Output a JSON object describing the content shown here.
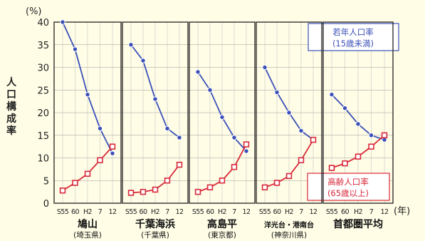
{
  "chart_data": {
    "type": "line",
    "y_unit": "(%)",
    "ylabel": "人口構成率",
    "x_unit": "(年)",
    "ylim": [
      0,
      40
    ],
    "yticks": [
      0,
      5,
      10,
      15,
      20,
      25,
      30,
      35,
      40
    ],
    "grid": true,
    "legend": [
      {
        "line1": "若年人口率",
        "line2": "(15歳未満)",
        "color": "#3b50b8",
        "marker": "circle",
        "placement": "top-right"
      },
      {
        "line1": "高齢人口率",
        "line2": "(65歳以上)",
        "color": "#d8283a",
        "marker": "square",
        "placement": "bottom-right"
      }
    ],
    "panels": [
      {
        "name": "鳩山",
        "prefecture": "(埼玉県)",
        "categories": [
          "S55",
          "60",
          "H2",
          "7",
          "12"
        ],
        "series": [
          {
            "key": "young",
            "values": [
              40,
              34,
              24,
              16.5,
              11
            ]
          },
          {
            "key": "elderly",
            "values": [
              2.8,
              4.5,
              6.5,
              9.5,
              12.5
            ]
          }
        ]
      },
      {
        "name": "千葉海浜",
        "prefecture": "(千葉県)",
        "categories": [
          "S55",
          "60",
          "H2",
          "7",
          "12"
        ],
        "series": [
          {
            "key": "young",
            "values": [
              35,
              31.5,
              23,
              16.5,
              14.5
            ]
          },
          {
            "key": "elderly",
            "values": [
              2.3,
              2.5,
              3,
              5,
              8.5
            ]
          }
        ]
      },
      {
        "name": "高島平",
        "prefecture": "(東京都)",
        "categories": [
          "S55",
          "60",
          "H2",
          "7",
          "12"
        ],
        "series": [
          {
            "key": "young",
            "values": [
              29,
              25,
              19,
              14.5,
              11.5
            ]
          },
          {
            "key": "elderly",
            "values": [
              2.5,
              3.5,
              5,
              8,
              13
            ]
          }
        ]
      },
      {
        "name": "洋光台・港南台",
        "prefecture": "(神奈川県)",
        "categories": [
          "S55",
          "60",
          "H2",
          "7",
          "12"
        ],
        "series": [
          {
            "key": "young",
            "values": [
              30,
              24.5,
              20,
              16,
              14
            ]
          },
          {
            "key": "elderly",
            "values": [
              3.5,
              4.5,
              6,
              9.5,
              14
            ]
          }
        ]
      },
      {
        "name": "首都圏平均",
        "prefecture": "",
        "categories": [
          "S55",
          "60",
          "H2",
          "7",
          "12"
        ],
        "series": [
          {
            "key": "young",
            "values": [
              24,
              21,
              17.5,
              15,
              14
            ]
          },
          {
            "key": "elderly",
            "values": [
              7.8,
              8.8,
              10.3,
              12.5,
              15
            ]
          }
        ]
      }
    ]
  }
}
